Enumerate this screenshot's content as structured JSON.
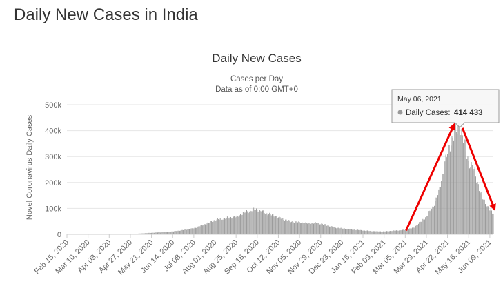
{
  "page": {
    "heading": "Daily New Cases in India"
  },
  "chart_data": {
    "type": "bar",
    "title": "Daily New Cases",
    "subtitle_lines": [
      "Cases per Day",
      "Data as of 0:00 GMT+0"
    ],
    "ylabel": "Novel Coronavirus Daily Cases",
    "xlabel": "",
    "x_start": "2020-02-15",
    "x_end": "2021-06-13",
    "ylim": [
      0,
      500000
    ],
    "y_ticks": [
      0,
      100000,
      200000,
      300000,
      400000,
      500000
    ],
    "y_tick_labels": [
      "0",
      "100k",
      "200k",
      "300k",
      "400k",
      "500k"
    ],
    "x_tick_labels": [
      "Feb 15, 2020",
      "Mar 10, 2020",
      "Apr 03, 2020",
      "Apr 27, 2020",
      "May 21, 2020",
      "Jun 14, 2020",
      "Jul 08, 2020",
      "Aug 01, 2020",
      "Aug 25, 2020",
      "Sep 18, 2020",
      "Oct 12, 2020",
      "Nov 05, 2020",
      "Nov 29, 2020",
      "Dec 23, 2020",
      "Jan 16, 2021",
      "Feb 09, 2021",
      "Mar 05, 2021",
      "Mar 29, 2021",
      "Apr 22, 2021",
      "May 16, 2021",
      "Jun 09, 2021"
    ],
    "grid": true,
    "bar_color": "#999999",
    "series": [
      {
        "name": "Daily Cases",
        "points": [
          [
            "2020-02-15",
            0
          ],
          [
            "2020-03-10",
            10
          ],
          [
            "2020-03-25",
            100
          ],
          [
            "2020-04-03",
            500
          ],
          [
            "2020-04-15",
            1000
          ],
          [
            "2020-04-27",
            1500
          ],
          [
            "2020-05-10",
            3500
          ],
          [
            "2020-05-21",
            6000
          ],
          [
            "2020-06-01",
            8000
          ],
          [
            "2020-06-14",
            11000
          ],
          [
            "2020-06-25",
            16000
          ],
          [
            "2020-07-08",
            23000
          ],
          [
            "2020-07-20",
            38000
          ],
          [
            "2020-08-01",
            55000
          ],
          [
            "2020-08-12",
            62000
          ],
          [
            "2020-08-25",
            67000
          ],
          [
            "2020-09-05",
            87000
          ],
          [
            "2020-09-16",
            97000
          ],
          [
            "2020-09-25",
            86000
          ],
          [
            "2020-10-05",
            74000
          ],
          [
            "2020-10-12",
            66000
          ],
          [
            "2020-10-25",
            50000
          ],
          [
            "2020-11-05",
            46000
          ],
          [
            "2020-11-15",
            42000
          ],
          [
            "2020-11-25",
            44000
          ],
          [
            "2020-12-05",
            36000
          ],
          [
            "2020-12-15",
            26000
          ],
          [
            "2020-12-23",
            23000
          ],
          [
            "2021-01-05",
            18000
          ],
          [
            "2021-01-16",
            15000
          ],
          [
            "2021-01-28",
            12000
          ],
          [
            "2021-02-09",
            11000
          ],
          [
            "2021-02-20",
            14000
          ],
          [
            "2021-03-05",
            17000
          ],
          [
            "2021-03-15",
            26000
          ],
          [
            "2021-03-22",
            47000
          ],
          [
            "2021-03-29",
            68000
          ],
          [
            "2021-04-05",
            103000
          ],
          [
            "2021-04-12",
            160000
          ],
          [
            "2021-04-18",
            260000
          ],
          [
            "2021-04-22",
            314000
          ],
          [
            "2021-04-28",
            379000
          ],
          [
            "2021-05-06",
            414433
          ],
          [
            "2021-05-10",
            366000
          ],
          [
            "2021-05-16",
            281000
          ],
          [
            "2021-05-23",
            240000
          ],
          [
            "2021-05-30",
            152000
          ],
          [
            "2021-06-05",
            114000
          ],
          [
            "2021-06-09",
            94000
          ],
          [
            "2021-06-13",
            80000
          ]
        ]
      }
    ],
    "tooltip": {
      "date": "May 06, 2021",
      "label": "Daily Cases:",
      "value": "414 433",
      "x": "2021-05-06",
      "y": 414433
    },
    "arrows": {
      "color": "#ee0000",
      "points": [
        [
          [
            "2021-03-06",
            15000
          ],
          [
            "2021-04-29",
            420000
          ]
        ],
        [
          [
            "2021-05-09",
            410000
          ],
          [
            "2021-06-14",
            100000
          ]
        ]
      ]
    }
  }
}
